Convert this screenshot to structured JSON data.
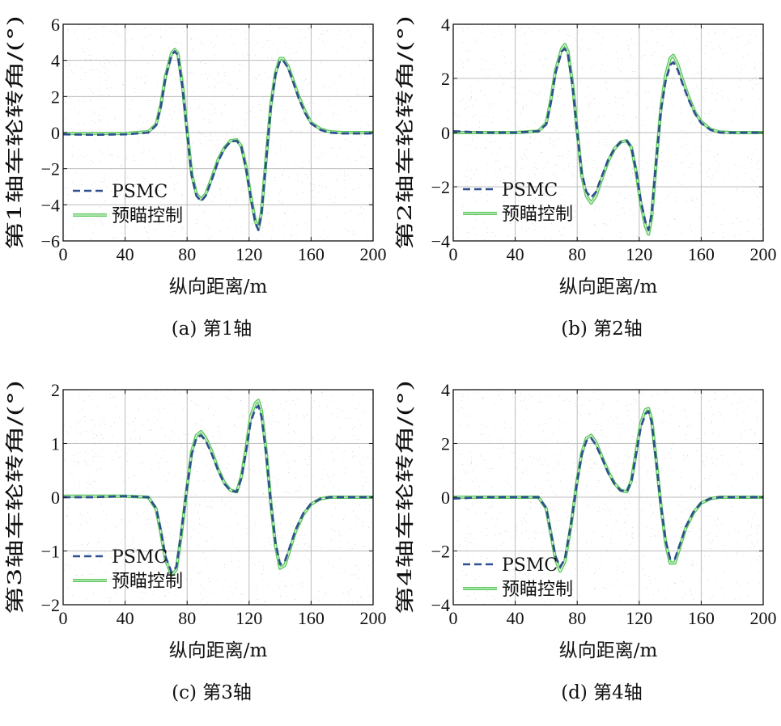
{
  "chart_data": [
    {
      "type": "line",
      "caption": "(a) 第1轴",
      "xlabel": "纵向距离/m",
      "ylabel": "第1轴车轮转角/(°)",
      "xlim": [
        0,
        200
      ],
      "ylim": [
        -6,
        6
      ],
      "xticks": [
        0,
        40,
        80,
        120,
        160,
        200
      ],
      "xtick_labels": [
        "0",
        "40",
        "80",
        "120",
        "160",
        "200"
      ],
      "yticks": [
        -6,
        -4,
        -2,
        0,
        2,
        4,
        6
      ],
      "ytick_labels": [
        "−6",
        "−4",
        "−2",
        "0",
        "2",
        "4",
        "6"
      ],
      "legend": [
        "PSMC",
        "预瞄控制"
      ],
      "series": [
        {
          "name": "PSMC",
          "color": "#2f4f8f",
          "style": "dashed",
          "x": [
            0,
            20,
            40,
            55,
            60,
            63,
            66,
            70,
            72,
            74,
            77,
            80,
            83,
            86,
            89,
            92,
            96,
            100,
            104,
            108,
            112,
            115,
            118,
            121,
            124,
            126,
            128,
            131,
            134,
            137,
            140,
            142,
            145,
            148,
            152,
            156,
            160,
            166,
            172,
            180,
            200
          ],
          "y": [
            -0.1,
            -0.12,
            -0.1,
            0,
            0.4,
            1.4,
            3.0,
            4.3,
            4.5,
            4.3,
            2.5,
            0.0,
            -2.4,
            -3.5,
            -3.8,
            -3.5,
            -2.6,
            -1.6,
            -0.9,
            -0.5,
            -0.45,
            -0.8,
            -2.0,
            -3.6,
            -5.0,
            -5.4,
            -4.5,
            -1.5,
            1.4,
            3.2,
            4.0,
            4.0,
            3.6,
            2.9,
            1.9,
            1.1,
            0.5,
            0.15,
            0.0,
            -0.05,
            -0.05
          ]
        },
        {
          "name": "预瞄控制",
          "color": "#5cc85c",
          "style": "solid",
          "x": [
            0,
            20,
            40,
            55,
            60,
            63,
            66,
            70,
            72,
            74,
            77,
            80,
            83,
            86,
            89,
            92,
            96,
            100,
            104,
            108,
            112,
            115,
            118,
            121,
            124,
            126,
            128,
            131,
            134,
            137,
            140,
            142,
            145,
            148,
            152,
            156,
            160,
            166,
            172,
            180,
            200
          ],
          "y": [
            -0.05,
            -0.05,
            -0.05,
            0.05,
            0.45,
            1.5,
            3.1,
            4.4,
            4.6,
            4.4,
            2.6,
            0.1,
            -2.3,
            -3.4,
            -3.7,
            -3.4,
            -2.5,
            -1.5,
            -0.85,
            -0.45,
            -0.4,
            -0.75,
            -1.9,
            -3.5,
            -4.9,
            -5.3,
            -4.4,
            -1.4,
            1.5,
            3.3,
            4.1,
            4.1,
            3.7,
            3.0,
            2.0,
            1.2,
            0.55,
            0.2,
            0.05,
            0.0,
            0.0
          ]
        }
      ]
    },
    {
      "type": "line",
      "caption": "(b) 第2轴",
      "xlabel": "纵向距离/m",
      "ylabel": "第2轴车轮转角/(°)",
      "xlim": [
        0,
        200
      ],
      "ylim": [
        -4,
        4
      ],
      "xticks": [
        0,
        40,
        80,
        120,
        160,
        200
      ],
      "xtick_labels": [
        "0",
        "40",
        "80",
        "120",
        "160",
        "200"
      ],
      "yticks": [
        -4,
        -2,
        0,
        2,
        4
      ],
      "ytick_labels": [
        "−4",
        "−2",
        "0",
        "2",
        "4"
      ],
      "legend": [
        "PSMC",
        "预瞄控制"
      ],
      "series": [
        {
          "name": "PSMC",
          "color": "#2f4f8f",
          "style": "dashed",
          "x": [
            0,
            20,
            40,
            55,
            60,
            63,
            66,
            70,
            72,
            74,
            77,
            80,
            83,
            86,
            89,
            92,
            96,
            100,
            104,
            108,
            112,
            115,
            118,
            121,
            124,
            126,
            128,
            131,
            134,
            137,
            140,
            142,
            145,
            148,
            152,
            156,
            160,
            166,
            172,
            180,
            200
          ],
          "y": [
            0.05,
            0.0,
            0.0,
            0.05,
            0.3,
            1.1,
            2.2,
            3.0,
            3.1,
            2.9,
            1.7,
            0.0,
            -1.5,
            -2.2,
            -2.4,
            -2.2,
            -1.6,
            -1.0,
            -0.6,
            -0.35,
            -0.3,
            -0.55,
            -1.4,
            -2.5,
            -3.3,
            -3.6,
            -3.0,
            -1.0,
            0.8,
            1.9,
            2.5,
            2.6,
            2.3,
            1.8,
            1.2,
            0.7,
            0.35,
            0.1,
            0.0,
            0.0,
            0.0
          ]
        },
        {
          "name": "预瞄控制",
          "color": "#5cc85c",
          "style": "solid",
          "x": [
            0,
            20,
            40,
            55,
            60,
            63,
            66,
            70,
            72,
            74,
            77,
            80,
            83,
            86,
            89,
            92,
            96,
            100,
            104,
            108,
            112,
            115,
            118,
            121,
            124,
            126,
            128,
            131,
            134,
            137,
            140,
            142,
            145,
            148,
            152,
            156,
            160,
            166,
            172,
            180,
            200
          ],
          "y": [
            0.0,
            0.0,
            0.0,
            0.05,
            0.35,
            1.2,
            2.3,
            3.1,
            3.25,
            3.0,
            1.8,
            0.05,
            -1.6,
            -2.35,
            -2.6,
            -2.35,
            -1.7,
            -1.05,
            -0.6,
            -0.35,
            -0.3,
            -0.55,
            -1.45,
            -2.6,
            -3.45,
            -3.75,
            -3.15,
            -1.05,
            0.9,
            2.1,
            2.75,
            2.85,
            2.5,
            1.95,
            1.3,
            0.75,
            0.4,
            0.12,
            0.02,
            0.0,
            0.0
          ]
        }
      ]
    },
    {
      "type": "line",
      "caption": "(c) 第3轴",
      "xlabel": "纵向距离/m",
      "ylabel": "第3轴车轮转角/(°)",
      "xlim": [
        0,
        200
      ],
      "ylim": [
        -2,
        2
      ],
      "xticks": [
        0,
        40,
        80,
        120,
        160,
        200
      ],
      "xtick_labels": [
        "0",
        "40",
        "80",
        "120",
        "160",
        "200"
      ],
      "yticks": [
        -2,
        -1,
        0,
        1,
        2
      ],
      "ytick_labels": [
        "−2",
        "−1",
        "0",
        "1",
        "2"
      ],
      "legend": [
        "PSMC",
        "预瞄控制"
      ],
      "series": [
        {
          "name": "PSMC",
          "color": "#2f4f8f",
          "style": "dashed",
          "x": [
            0,
            20,
            40,
            55,
            60,
            63,
            66,
            70,
            73,
            76,
            80,
            83,
            86,
            89,
            92,
            96,
            100,
            104,
            108,
            112,
            115,
            118,
            121,
            124,
            126,
            128,
            131,
            134,
            137,
            140,
            143,
            146,
            150,
            155,
            160,
            166,
            172,
            180,
            200
          ],
          "y": [
            0.0,
            0.0,
            0.02,
            0.0,
            -0.2,
            -0.6,
            -1.1,
            -1.4,
            -1.3,
            -0.7,
            0.2,
            0.8,
            1.1,
            1.15,
            1.05,
            0.8,
            0.5,
            0.25,
            0.12,
            0.1,
            0.35,
            0.85,
            1.4,
            1.65,
            1.7,
            1.5,
            0.8,
            -0.1,
            -0.85,
            -1.25,
            -1.2,
            -0.95,
            -0.6,
            -0.3,
            -0.12,
            -0.03,
            0.0,
            0.0,
            0.0
          ]
        },
        {
          "name": "预瞄控制",
          "color": "#5cc85c",
          "style": "solid",
          "x": [
            0,
            20,
            40,
            55,
            60,
            63,
            66,
            70,
            73,
            76,
            80,
            83,
            86,
            89,
            92,
            96,
            100,
            104,
            108,
            112,
            115,
            118,
            121,
            124,
            126,
            128,
            131,
            134,
            137,
            140,
            143,
            146,
            150,
            155,
            160,
            166,
            172,
            180,
            200
          ],
          "y": [
            0.02,
            0.02,
            0.02,
            0.0,
            -0.22,
            -0.65,
            -1.15,
            -1.45,
            -1.35,
            -0.75,
            0.2,
            0.85,
            1.15,
            1.22,
            1.1,
            0.85,
            0.52,
            0.27,
            0.13,
            0.1,
            0.38,
            0.9,
            1.5,
            1.75,
            1.8,
            1.6,
            0.85,
            -0.1,
            -0.9,
            -1.32,
            -1.27,
            -1.0,
            -0.63,
            -0.32,
            -0.13,
            -0.03,
            0.0,
            0.0,
            0.0
          ]
        }
      ]
    },
    {
      "type": "line",
      "caption": "(d) 第4轴",
      "xlabel": "纵向距离/m",
      "ylabel": "第4轴车轮转角/(°)",
      "xlim": [
        0,
        200
      ],
      "ylim": [
        -4,
        4
      ],
      "xticks": [
        0,
        40,
        80,
        120,
        160,
        200
      ],
      "xtick_labels": [
        "0",
        "40",
        "80",
        "120",
        "160",
        "200"
      ],
      "yticks": [
        -4,
        -2,
        0,
        2,
        4
      ],
      "ytick_labels": [
        "−4",
        "−2",
        "0",
        "2",
        "4"
      ],
      "legend": [
        "PSMC",
        "预瞄控制"
      ],
      "series": [
        {
          "name": "PSMC",
          "color": "#2f4f8f",
          "style": "dashed",
          "x": [
            0,
            20,
            40,
            55,
            60,
            63,
            66,
            69,
            72,
            76,
            80,
            83,
            86,
            89,
            92,
            96,
            100,
            104,
            108,
            112,
            115,
            118,
            121,
            124,
            126,
            128,
            131,
            134,
            137,
            140,
            143,
            146,
            150,
            155,
            160,
            166,
            172,
            180,
            200
          ],
          "y": [
            -0.05,
            0.0,
            0.0,
            0.0,
            -0.4,
            -1.3,
            -2.2,
            -2.6,
            -2.3,
            -1.0,
            0.6,
            1.6,
            2.1,
            2.2,
            1.95,
            1.45,
            0.9,
            0.5,
            0.25,
            0.2,
            0.6,
            1.6,
            2.6,
            3.1,
            3.2,
            2.8,
            1.3,
            -0.3,
            -1.6,
            -2.3,
            -2.3,
            -1.8,
            -1.1,
            -0.55,
            -0.2,
            -0.05,
            0.0,
            0.0,
            0.0
          ]
        },
        {
          "name": "预瞄控制",
          "color": "#5cc85c",
          "style": "solid",
          "x": [
            0,
            20,
            40,
            55,
            60,
            63,
            66,
            69,
            72,
            76,
            80,
            83,
            86,
            89,
            92,
            96,
            100,
            104,
            108,
            112,
            115,
            118,
            121,
            124,
            126,
            128,
            131,
            134,
            137,
            140,
            143,
            146,
            150,
            155,
            160,
            166,
            172,
            180,
            200
          ],
          "y": [
            0.0,
            0.0,
            0.0,
            0.0,
            -0.42,
            -1.35,
            -2.3,
            -2.75,
            -2.4,
            -1.05,
            0.65,
            1.65,
            2.2,
            2.3,
            2.05,
            1.5,
            0.95,
            0.52,
            0.26,
            0.2,
            0.62,
            1.7,
            2.75,
            3.25,
            3.3,
            2.9,
            1.35,
            -0.3,
            -1.7,
            -2.45,
            -2.45,
            -1.9,
            -1.15,
            -0.58,
            -0.22,
            -0.05,
            0.0,
            0.0,
            0.0
          ]
        }
      ]
    }
  ]
}
